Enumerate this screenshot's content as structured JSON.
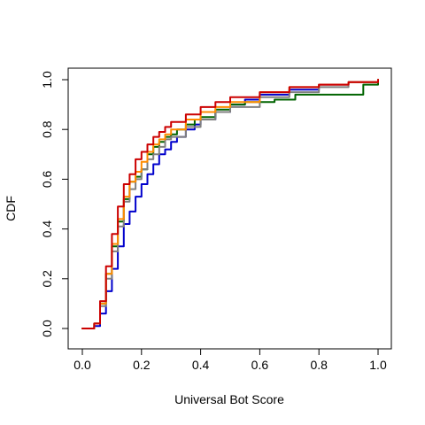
{
  "chart_data": {
    "type": "line",
    "title": "",
    "xlabel": "Universal Bot Score",
    "ylabel": "CDF",
    "xlim": [
      0,
      1
    ],
    "ylim": [
      0,
      1
    ],
    "xticks": [
      "0.0",
      "0.2",
      "0.4",
      "0.6",
      "0.8",
      "1.0"
    ],
    "yticks": [
      "0.0",
      "0.2",
      "0.4",
      "0.6",
      "0.8",
      "1.0"
    ],
    "grid": false,
    "legend": "none",
    "series": [
      {
        "color": "#0000CC",
        "x": [
          0.0,
          0.02,
          0.04,
          0.06,
          0.08,
          0.1,
          0.12,
          0.14,
          0.16,
          0.18,
          0.2,
          0.22,
          0.24,
          0.26,
          0.28,
          0.3,
          0.32,
          0.35,
          0.38,
          0.4,
          0.45,
          0.5,
          0.55,
          0.6,
          0.7,
          0.8,
          0.9,
          1.0
        ],
        "y": [
          0.0,
          0.0,
          0.01,
          0.06,
          0.15,
          0.24,
          0.33,
          0.42,
          0.47,
          0.53,
          0.58,
          0.62,
          0.66,
          0.7,
          0.72,
          0.75,
          0.77,
          0.8,
          0.82,
          0.84,
          0.87,
          0.9,
          0.92,
          0.94,
          0.96,
          0.98,
          0.99,
          1.0
        ]
      },
      {
        "color": "#006400",
        "x": [
          0.0,
          0.02,
          0.04,
          0.06,
          0.08,
          0.1,
          0.12,
          0.14,
          0.16,
          0.18,
          0.2,
          0.22,
          0.24,
          0.26,
          0.28,
          0.3,
          0.32,
          0.35,
          0.38,
          0.4,
          0.45,
          0.5,
          0.55,
          0.6,
          0.65,
          0.7,
          0.72,
          0.8,
          0.9,
          0.95,
          1.0
        ],
        "y": [
          0.0,
          0.0,
          0.02,
          0.1,
          0.22,
          0.33,
          0.43,
          0.52,
          0.59,
          0.61,
          0.64,
          0.7,
          0.73,
          0.75,
          0.77,
          0.78,
          0.8,
          0.82,
          0.84,
          0.85,
          0.88,
          0.9,
          0.91,
          0.91,
          0.92,
          0.92,
          0.94,
          0.94,
          0.94,
          0.98,
          1.0
        ]
      },
      {
        "color": "#808080",
        "x": [
          0.0,
          0.02,
          0.04,
          0.06,
          0.08,
          0.1,
          0.12,
          0.14,
          0.16,
          0.18,
          0.2,
          0.22,
          0.24,
          0.26,
          0.28,
          0.3,
          0.35,
          0.4,
          0.45,
          0.5,
          0.6,
          0.7,
          0.8,
          0.9,
          1.0
        ],
        "y": [
          0.0,
          0.0,
          0.02,
          0.09,
          0.2,
          0.31,
          0.41,
          0.51,
          0.56,
          0.6,
          0.64,
          0.68,
          0.7,
          0.73,
          0.76,
          0.77,
          0.81,
          0.84,
          0.87,
          0.89,
          0.93,
          0.95,
          0.97,
          0.99,
          1.0
        ]
      },
      {
        "color": "#FF8C00",
        "x": [
          0.0,
          0.02,
          0.04,
          0.06,
          0.08,
          0.1,
          0.12,
          0.14,
          0.16,
          0.18,
          0.2,
          0.22,
          0.24,
          0.26,
          0.28,
          0.3,
          0.35,
          0.4,
          0.45,
          0.5,
          0.6,
          0.7,
          0.8,
          0.9,
          1.0
        ],
        "y": [
          0.0,
          0.0,
          0.02,
          0.1,
          0.22,
          0.34,
          0.44,
          0.53,
          0.59,
          0.63,
          0.67,
          0.71,
          0.74,
          0.76,
          0.78,
          0.8,
          0.84,
          0.87,
          0.89,
          0.91,
          0.95,
          0.97,
          0.98,
          0.99,
          1.0
        ]
      },
      {
        "color": "#CC0000",
        "x": [
          0.0,
          0.02,
          0.04,
          0.06,
          0.08,
          0.1,
          0.12,
          0.14,
          0.16,
          0.18,
          0.2,
          0.22,
          0.24,
          0.26,
          0.28,
          0.3,
          0.35,
          0.4,
          0.45,
          0.5,
          0.6,
          0.7,
          0.8,
          0.9,
          1.0
        ],
        "y": [
          0.0,
          0.0,
          0.02,
          0.11,
          0.25,
          0.38,
          0.49,
          0.58,
          0.62,
          0.68,
          0.71,
          0.74,
          0.77,
          0.79,
          0.81,
          0.83,
          0.86,
          0.89,
          0.91,
          0.93,
          0.95,
          0.97,
          0.98,
          0.99,
          1.0
        ]
      }
    ]
  }
}
